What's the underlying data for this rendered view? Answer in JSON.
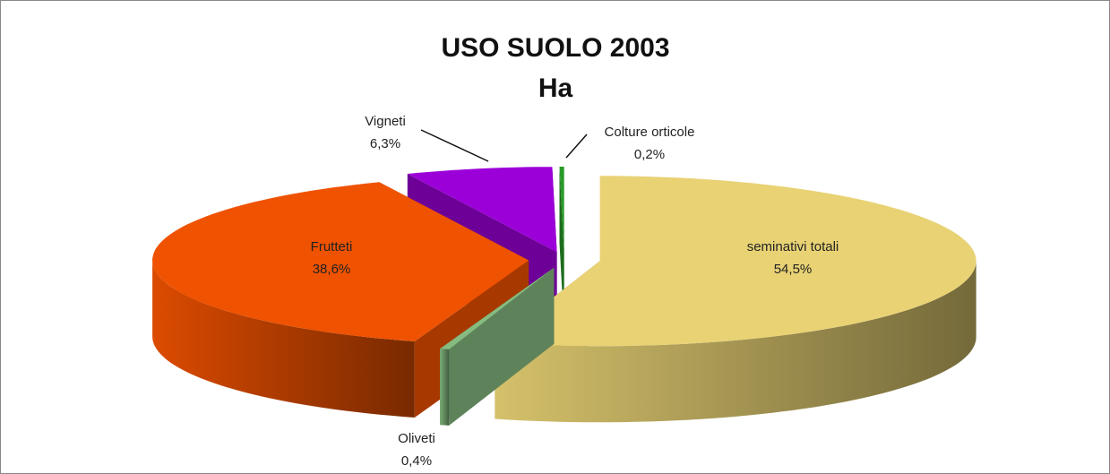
{
  "chart_data": {
    "type": "pie",
    "title": "USO SUOLO 2003",
    "subtitle": "Ha",
    "categories": [
      "seminativi totali",
      "Oliveti",
      "Frutteti",
      "Vigneti",
      "Colture orticole"
    ],
    "values": [
      54.5,
      0.4,
      38.6,
      6.3,
      0.2
    ],
    "value_labels": [
      "54,5%",
      "0,4%",
      "38,6%",
      "6,3%",
      "0,2%"
    ],
    "colors": [
      "#e8d274",
      "#86bb80",
      "#ef5200",
      "#9c00d8",
      "#2a9a2a"
    ]
  }
}
